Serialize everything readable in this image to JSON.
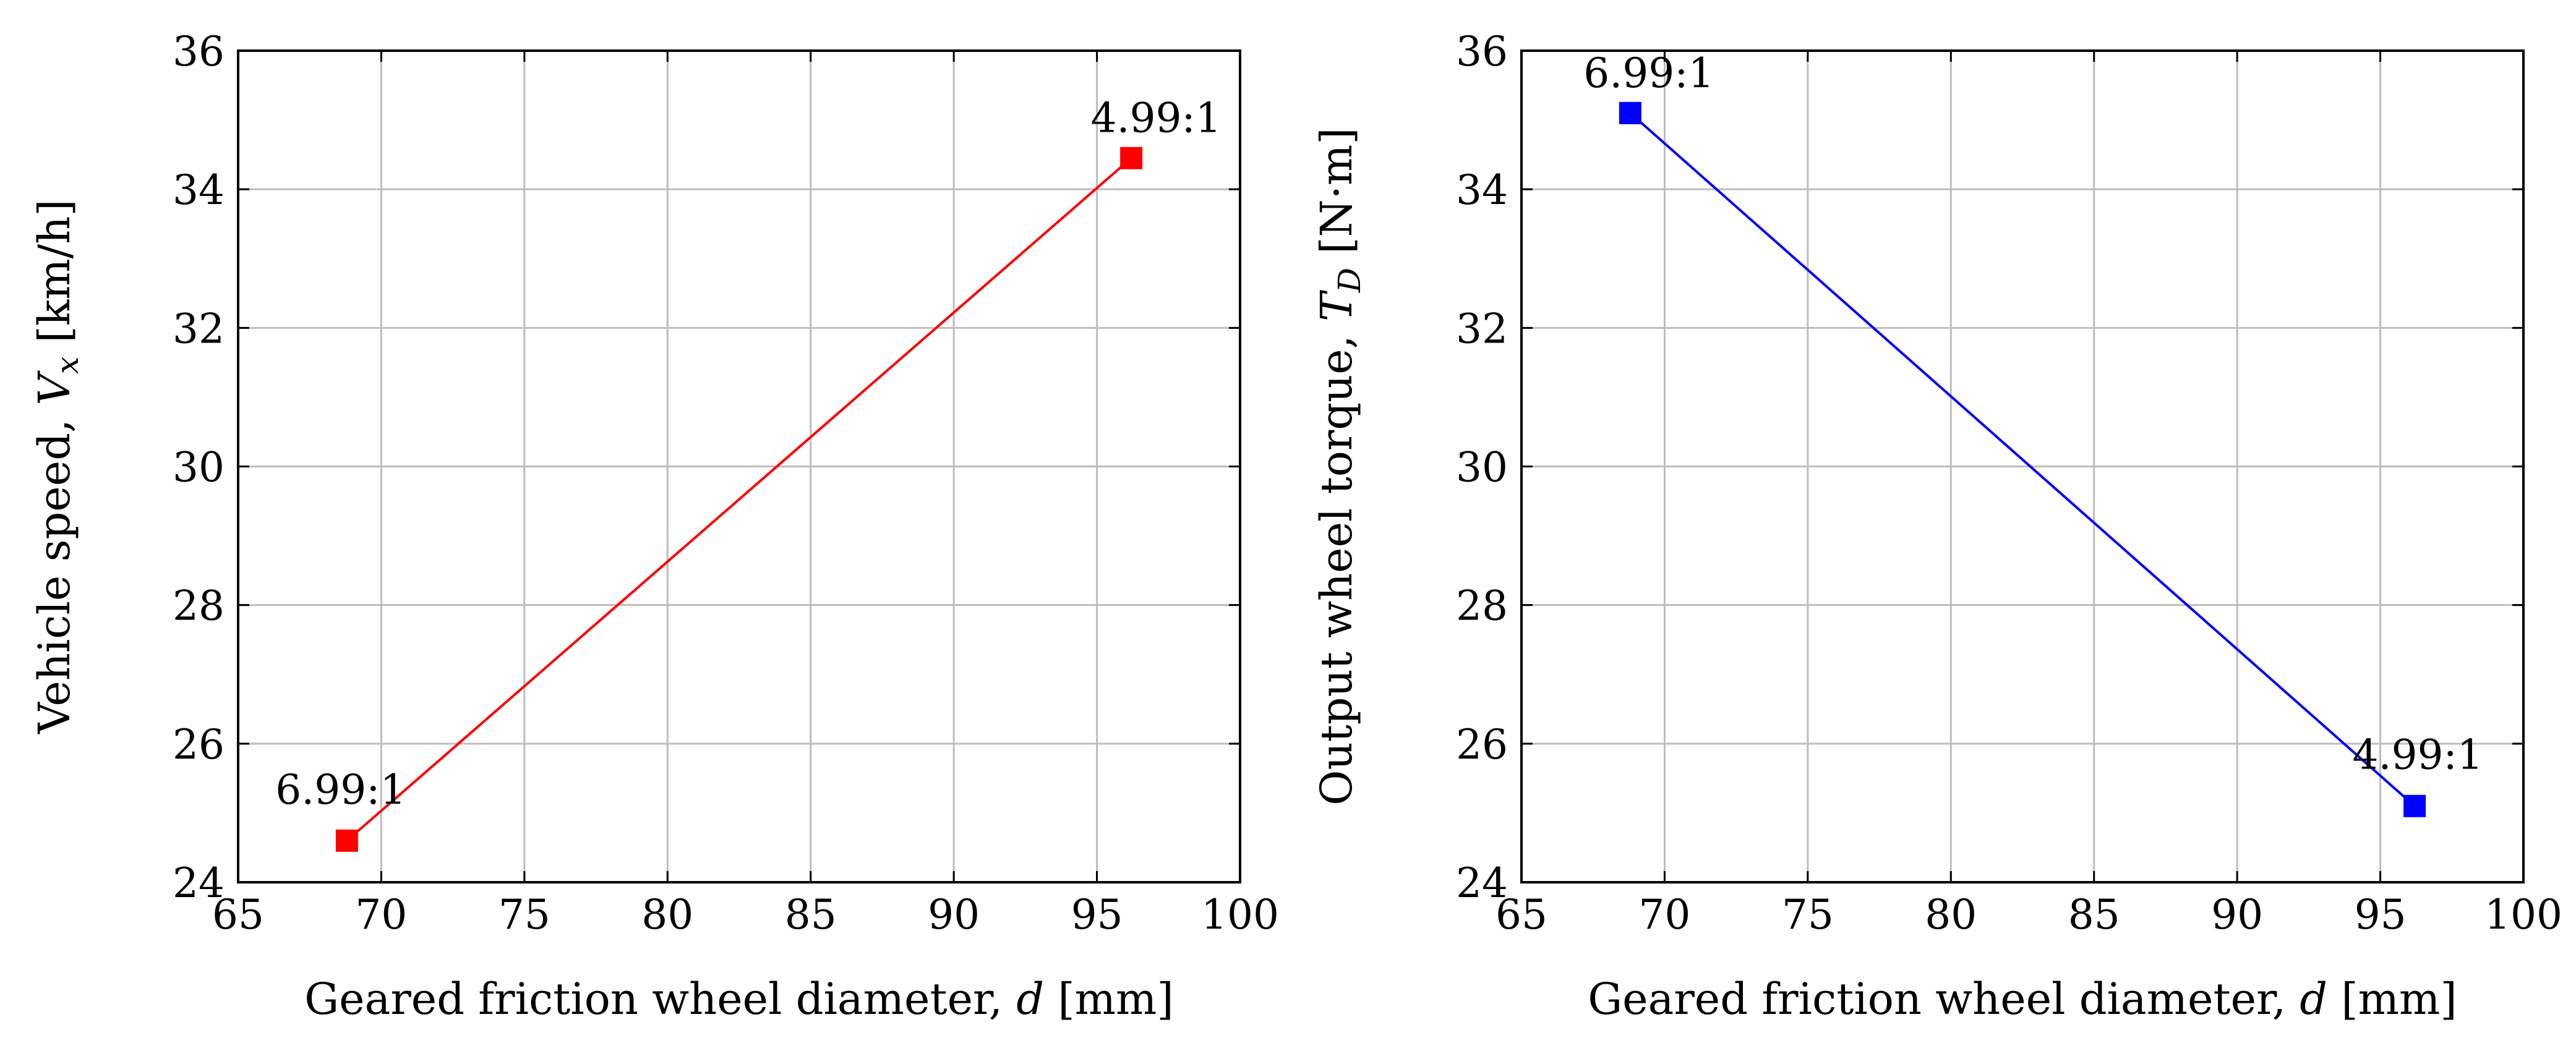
{
  "chart_data": [
    {
      "type": "line",
      "title": "",
      "xlabel": "Geared friction wheel diameter, d [mm]",
      "ylabel": "Vehicle speed, Vx [km/h]",
      "xlabel_parts": {
        "main": "Geared friction wheel diameter, ",
        "var": "d",
        "unit": " [mm]"
      },
      "ylabel_parts": {
        "main": "Vehicle speed, ",
        "var": "V",
        "sub": "x",
        "unit": " [km/h]"
      },
      "xlim": [
        65,
        100
      ],
      "ylim": [
        24,
        36
      ],
      "xticks": [
        65,
        70,
        75,
        80,
        85,
        90,
        95,
        100
      ],
      "yticks": [
        24,
        26,
        28,
        30,
        32,
        34,
        36
      ],
      "grid": true,
      "series": [
        {
          "name": "Vehicle speed",
          "color": "#ff0000",
          "marker": "square",
          "x": [
            68.8,
            96.2
          ],
          "y": [
            24.6,
            34.45
          ],
          "point_labels": [
            "6.99:1",
            "4.99:1"
          ]
        }
      ]
    },
    {
      "type": "line",
      "title": "",
      "xlabel": "Geared friction wheel diameter, d [mm]",
      "ylabel": "Output wheel torque, TD [N·m]",
      "xlabel_parts": {
        "main": "Geared friction wheel diameter, ",
        "var": "d",
        "unit": " [mm]"
      },
      "ylabel_parts": {
        "main": "Output wheel torque, ",
        "var": "T",
        "sub": "D",
        "unit": " [N·m]"
      },
      "xlim": [
        65,
        100
      ],
      "ylim": [
        24,
        36
      ],
      "xticks": [
        65,
        70,
        75,
        80,
        85,
        90,
        95,
        100
      ],
      "yticks": [
        24,
        26,
        28,
        30,
        32,
        34,
        36
      ],
      "grid": true,
      "series": [
        {
          "name": "Output wheel torque",
          "color": "#0000ff",
          "marker": "square",
          "x": [
            68.8,
            96.2
          ],
          "y": [
            35.1,
            25.1
          ],
          "point_labels": [
            "6.99:1",
            "4.99:1"
          ]
        }
      ]
    }
  ]
}
